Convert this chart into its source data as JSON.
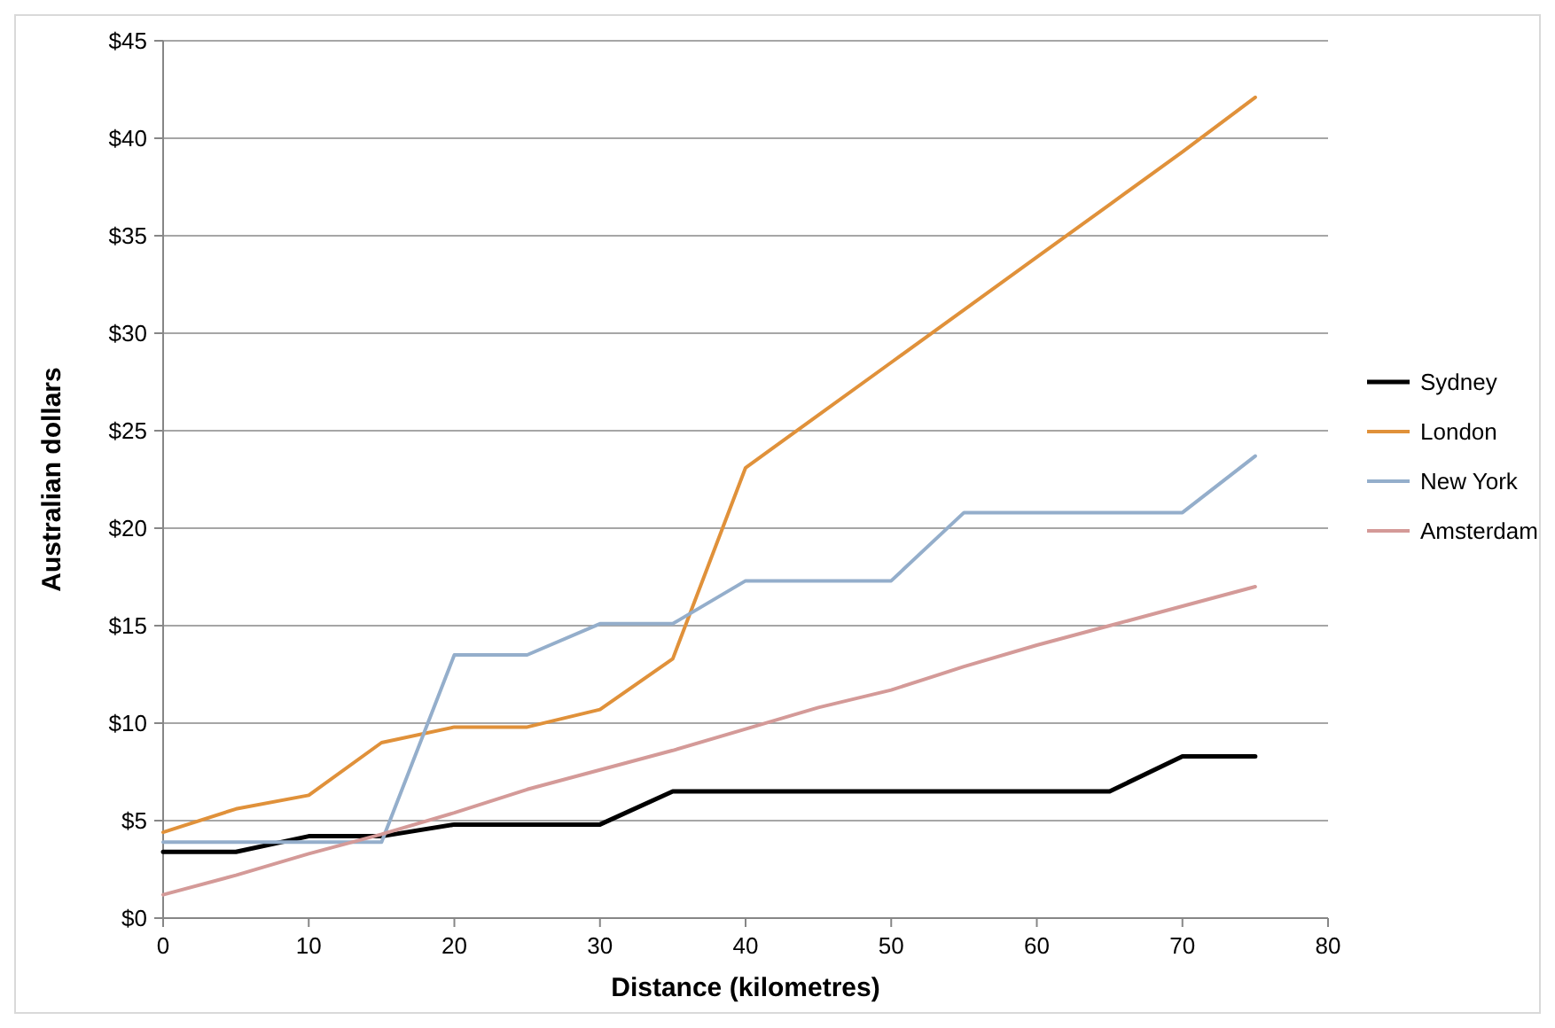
{
  "chart_data": {
    "type": "line",
    "xlabel": "Distance (kilometres)",
    "ylabel": "Australian dollars",
    "x": [
      0,
      5,
      10,
      15,
      20,
      25,
      30,
      35,
      40,
      45,
      50,
      55,
      60,
      65,
      70,
      75
    ],
    "series": [
      {
        "name": "Sydney",
        "color": "#000000",
        "values": [
          3.4,
          3.4,
          4.2,
          4.2,
          4.8,
          4.8,
          4.8,
          6.5,
          6.5,
          6.5,
          6.5,
          6.5,
          6.5,
          6.5,
          8.3,
          8.3
        ]
      },
      {
        "name": "London",
        "color": "#e0913a",
        "values": [
          4.4,
          5.6,
          6.3,
          9.0,
          9.8,
          9.8,
          10.7,
          13.3,
          23.1,
          25.8,
          28.5,
          31.2,
          33.9,
          36.6,
          39.3,
          42.1
        ]
      },
      {
        "name": "New York",
        "color": "#94aecb",
        "values": [
          3.9,
          3.9,
          3.9,
          3.9,
          13.5,
          13.5,
          15.1,
          15.1,
          17.3,
          17.3,
          17.3,
          20.8,
          20.8,
          20.8,
          20.8,
          23.7
        ]
      },
      {
        "name": "Amsterdam",
        "color": "#d49a98",
        "values": [
          1.2,
          2.2,
          3.3,
          4.3,
          5.4,
          6.6,
          7.6,
          8.6,
          9.7,
          10.8,
          11.7,
          12.9,
          14.0,
          15.0,
          16.0,
          17.0
        ]
      }
    ],
    "xlim": [
      0,
      80
    ],
    "xticks": [
      0,
      10,
      20,
      30,
      40,
      50,
      60,
      70,
      80
    ],
    "ylim": [
      0,
      45
    ],
    "yticks": [
      {
        "value": 0,
        "label": "$0"
      },
      {
        "value": 5,
        "label": "$5"
      },
      {
        "value": 10,
        "label": "$10"
      },
      {
        "value": 15,
        "label": "$15"
      },
      {
        "value": 20,
        "label": "$20"
      },
      {
        "value": 25,
        "label": "$25"
      },
      {
        "value": 30,
        "label": "$30"
      },
      {
        "value": 35,
        "label": "$35"
      },
      {
        "value": 40,
        "label": "$40"
      },
      {
        "value": 45,
        "label": "$45"
      }
    ],
    "grid": "y",
    "legend": "right",
    "marker": "none",
    "line_style": "solid"
  }
}
